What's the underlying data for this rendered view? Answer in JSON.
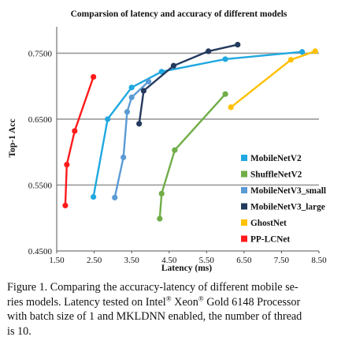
{
  "chart_data": {
    "type": "line",
    "title": "Comparsion of latency and accuracy of different models",
    "xlabel": "Latency (ms)",
    "ylabel": "Top-1 Acc",
    "xlim": [
      1.5,
      8.5
    ],
    "ylim": [
      0.45,
      0.79
    ],
    "xticks": [
      "1.50",
      "2.50",
      "3.50",
      "4.50",
      "5.50",
      "6.50",
      "7.50",
      "8.50"
    ],
    "yticks": [
      "0.4500",
      "0.5500",
      "0.6500",
      "0.7500"
    ],
    "grid": "horizontal",
    "legend_position": "center-right",
    "series": [
      {
        "name": "MobileNetV2",
        "color": "#20a8e0",
        "points": [
          [
            2.48,
            0.532
          ],
          [
            2.86,
            0.65
          ],
          [
            3.5,
            0.698
          ],
          [
            4.3,
            0.722
          ],
          [
            6.0,
            0.741
          ],
          [
            8.05,
            0.752
          ]
        ]
      },
      {
        "name": "ShuffleNetV2",
        "color": "#70ad47",
        "points": [
          [
            4.25,
            0.499
          ],
          [
            4.3,
            0.537
          ],
          [
            4.65,
            0.603
          ],
          [
            6.0,
            0.688
          ]
        ]
      },
      {
        "name": "MobileNetV3_small",
        "color": "#5b9bd5",
        "points": [
          [
            3.05,
            0.531
          ],
          [
            3.28,
            0.592
          ],
          [
            3.38,
            0.661
          ],
          [
            3.5,
            0.683
          ],
          [
            3.95,
            0.707
          ]
        ]
      },
      {
        "name": "MobileNetV3_large",
        "color": "#243a5e",
        "points": [
          [
            3.7,
            0.643
          ],
          [
            3.82,
            0.693
          ],
          [
            4.62,
            0.731
          ],
          [
            5.55,
            0.753
          ],
          [
            6.33,
            0.763
          ]
        ]
      },
      {
        "name": "GhostNet",
        "color": "#ffc000",
        "points": [
          [
            6.15,
            0.668
          ],
          [
            7.75,
            0.74
          ],
          [
            8.4,
            0.753
          ]
        ]
      },
      {
        "name": "PP-LCNet",
        "color": "#ff1a1a",
        "points": [
          [
            1.73,
            0.519
          ],
          [
            1.77,
            0.581
          ],
          [
            1.98,
            0.632
          ],
          [
            2.48,
            0.714
          ]
        ]
      }
    ]
  },
  "caption": {
    "line1": "Figure 1. Comparing the accuracy-latency of different mobile se-",
    "line2a": "ries models. Latency tested on Intel",
    "reg1": "®",
    "line2b": " Xeon",
    "reg2": "®",
    "line2c": " Gold 6148 Processor",
    "line3": "with batch size of 1 and MKLDNN enabled, the number of thread",
    "line4": "is 10."
  }
}
